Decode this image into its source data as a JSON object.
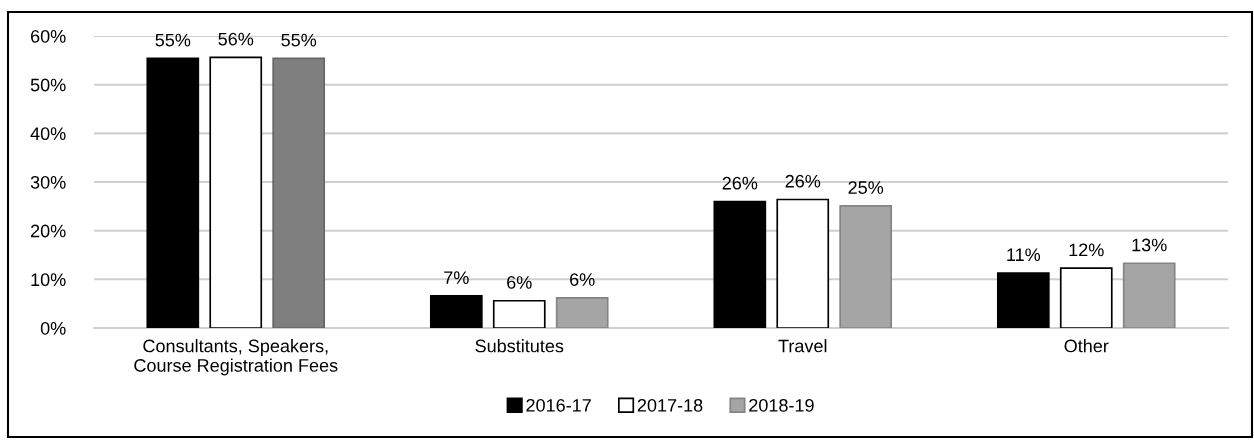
{
  "chart_data": {
    "type": "bar",
    "categories": [
      "Consultants, Speakers,\nCourse Registration Fees",
      "Substitutes",
      "Travel",
      "Other"
    ],
    "series": [
      {
        "name": "2016-17",
        "color": "#000000",
        "values": [
          55.4,
          6.6,
          26.0,
          11.3
        ],
        "value_labels": [
          "55%",
          "7%",
          "26%",
          "11%"
        ]
      },
      {
        "name": "2017-18",
        "color": "#ffffff",
        "values": [
          55.6,
          5.6,
          26.4,
          12.3
        ],
        "value_labels": [
          "56%",
          "6%",
          "26%",
          "12%"
        ]
      },
      {
        "name": "2018-19",
        "color": "#a5a5a5",
        "colors": [
          "#7f7f7f",
          "#a5a5a5",
          "#a5a5a5",
          "#a5a5a5"
        ],
        "values": [
          55.4,
          6.2,
          25.1,
          13.3
        ],
        "value_labels": [
          "55%",
          "6%",
          "25%",
          "13%"
        ]
      }
    ],
    "ylim": [
      0,
      60
    ],
    "yticks": [
      {
        "value": 0,
        "label": "0%"
      },
      {
        "value": 10,
        "label": "10%"
      },
      {
        "value": 20,
        "label": "20%"
      },
      {
        "value": 30,
        "label": "30%"
      },
      {
        "value": 40,
        "label": "40%"
      },
      {
        "value": 50,
        "label": "50%"
      },
      {
        "value": 60,
        "label": "60%"
      }
    ],
    "grid": "y",
    "legend": "bottom"
  }
}
